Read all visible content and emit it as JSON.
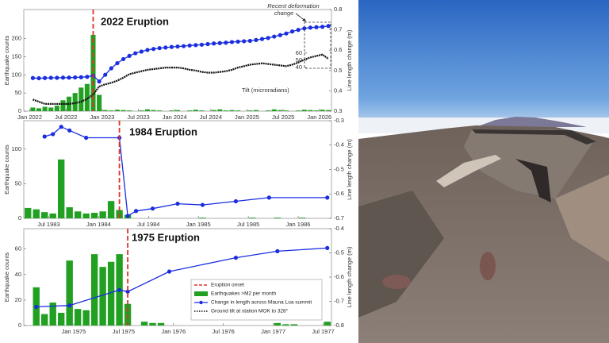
{
  "chart_data": [
    {
      "type": "combo",
      "title": "2022 Eruption",
      "ylabel": "Earthquake counts",
      "y2label": "Line length change (m)",
      "annotation": [
        "Recent deformation",
        "change"
      ],
      "tilt_label": "Tilt (microradians)",
      "eruption_label": "Eruption onset",
      "eruption": "2022-11",
      "xlim": [
        "2021-12",
        "2026-03"
      ],
      "xticks": [
        {
          "value": "2022-01",
          "label": "Jan 2022"
        },
        {
          "value": "2022-07",
          "label": "Jul 2022"
        },
        {
          "value": "2023-01",
          "label": "Jan 2023"
        },
        {
          "value": "2023-07",
          "label": "Jul 2023"
        },
        {
          "value": "2024-01",
          "label": "Jan 2024"
        },
        {
          "value": "2024-07",
          "label": "Jul 2024"
        },
        {
          "value": "2025-01",
          "label": "Jan 2025"
        },
        {
          "value": "2025-07",
          "label": "Jul 2025"
        },
        {
          "value": "2026-01",
          "label": "Jan 2026"
        }
      ],
      "ylim": [
        0,
        280
      ],
      "yticks": [
        0,
        50,
        100,
        150,
        200
      ],
      "y2lim": [
        0.3,
        0.8
      ],
      "y2ticks": [
        0.3,
        0.4,
        0.5,
        0.6,
        0.7,
        0.8
      ],
      "tilt_lim": [
        -20,
        120
      ],
      "tilt_ticks": [
        40,
        50,
        60
      ],
      "x": [
        "2022-01",
        "2022-02",
        "2022-03",
        "2022-04",
        "2022-05",
        "2022-06",
        "2022-07",
        "2022-08",
        "2022-09",
        "2022-10",
        "2022-11",
        "2022-12",
        "2023-01",
        "2023-02",
        "2023-03",
        "2023-04",
        "2023-05",
        "2023-06",
        "2023-07",
        "2023-08",
        "2023-09",
        "2023-10",
        "2023-11",
        "2023-12",
        "2024-01",
        "2024-02",
        "2024-03",
        "2024-04",
        "2024-05",
        "2024-06",
        "2024-07",
        "2024-08",
        "2024-09",
        "2024-10",
        "2024-11",
        "2024-12",
        "2025-01",
        "2025-02",
        "2025-03",
        "2025-04",
        "2025-05",
        "2025-06",
        "2025-07",
        "2025-08",
        "2025-09",
        "2025-10",
        "2025-11",
        "2025-12",
        "2026-01",
        "2026-02"
      ],
      "series": [
        {
          "name": "Earthquakes >M2 per month",
          "kind": "bar",
          "axis": "y",
          "color": "#22a022",
          "values": [
            10,
            8,
            12,
            10,
            15,
            30,
            40,
            50,
            65,
            75,
            210,
            45,
            3,
            2,
            4,
            3,
            2,
            0,
            2,
            5,
            3,
            2,
            0,
            2,
            3,
            0,
            2,
            4,
            2,
            0,
            3,
            5,
            2,
            3,
            2,
            0,
            2,
            3,
            0,
            2,
            5,
            3,
            2,
            0,
            2,
            4,
            3,
            2,
            4,
            3
          ]
        },
        {
          "name": "Ground tilt at station MOK to 328°",
          "kind": "line",
          "axis": "tilt",
          "color": "#111111",
          "values": [
            -4,
            -7,
            -10,
            -10,
            -10,
            -10,
            -10,
            -9,
            -7,
            -3,
            3,
            14,
            17,
            19,
            22,
            26,
            31,
            33,
            35,
            37,
            38,
            39,
            40,
            40,
            40,
            39,
            37,
            36,
            34,
            33,
            33,
            34,
            35,
            37,
            40,
            42,
            44,
            45,
            46,
            45,
            44,
            43,
            42,
            44,
            47,
            51,
            54,
            56,
            58,
            52
          ]
        },
        {
          "name": "Change in length across Mauna Loa summit",
          "kind": "line",
          "axis": "y2",
          "color": "#1a2ee0",
          "markers": true,
          "values": [
            0.463,
            0.462,
            0.463,
            0.464,
            0.464,
            0.465,
            0.465,
            0.466,
            0.467,
            0.469,
            0.475,
            0.446,
            0.479,
            0.511,
            0.536,
            0.556,
            0.572,
            0.585,
            0.593,
            0.601,
            0.606,
            0.61,
            0.613,
            0.616,
            0.618,
            0.62,
            0.623,
            0.625,
            0.627,
            0.63,
            0.633,
            0.635,
            0.637,
            0.64,
            0.642,
            0.644,
            0.646,
            0.65,
            0.655,
            0.66,
            0.667,
            0.674,
            0.682,
            0.692,
            0.7,
            0.707,
            0.711,
            0.713,
            0.715,
            0.719
          ]
        }
      ]
    },
    {
      "type": "combo",
      "title": "1984 Eruption",
      "ylabel": "Earthquake counts",
      "y2label": "Line length change (m)",
      "eruption": "1984-03",
      "xlim": [
        "1983-04",
        "1986-05"
      ],
      "xticks": [
        {
          "value": "1983-07",
          "label": "Jul 1983"
        },
        {
          "value": "1984-01",
          "label": "Jan 1984"
        },
        {
          "value": "1984-07",
          "label": "Jul 1984"
        },
        {
          "value": "1985-01",
          "label": "Jan 1985"
        },
        {
          "value": "1985-07",
          "label": "Jul 1985"
        },
        {
          "value": "1986-01",
          "label": "Jan 1986"
        }
      ],
      "ylim": [
        0,
        141
      ],
      "yticks": [
        0,
        50,
        100
      ],
      "y2lim": [
        -0.7,
        -0.3
      ],
      "y2ticks": [
        -0.7,
        -0.6,
        -0.5,
        -0.4,
        -0.3
      ],
      "series": [
        {
          "kind": "bar",
          "axis": "y",
          "color": "#22a022",
          "x": [
            "1983-04",
            "1983-05",
            "1983-06",
            "1983-07",
            "1983-08",
            "1983-09",
            "1983-10",
            "1983-11",
            "1983-12",
            "1984-01",
            "1984-02",
            "1984-03",
            "1984-04",
            "1985-01",
            "1985-07",
            "1985-10",
            "1986-01"
          ],
          "values": [
            15,
            13,
            9,
            7,
            85,
            16,
            10,
            7,
            8,
            10,
            25,
            12,
            5,
            1,
            1,
            1,
            1
          ]
        },
        {
          "kind": "line",
          "axis": "y2",
          "color": "#1a2ee0",
          "markers": true,
          "x": [
            "1983-06",
            "1983-07",
            "1983-08",
            "1983-09",
            "1983-11",
            "1984-03",
            "1984-04",
            "1984-05",
            "1984-07",
            "1984-10",
            "1985-01",
            "1985-05",
            "1985-09",
            "1986-04"
          ],
          "values": [
            -0.365,
            -0.355,
            -0.325,
            -0.34,
            -0.37,
            -0.37,
            -0.69,
            -0.67,
            -0.66,
            -0.64,
            -0.645,
            -0.63,
            -0.615,
            -0.615
          ]
        }
      ]
    },
    {
      "type": "combo",
      "title": "1975 Eruption",
      "ylabel": "Earthquake counts",
      "y2label": "Line length change (m)",
      "eruption": "1975-07",
      "xlim": [
        "1974-07",
        "1977-08"
      ],
      "xticks": [
        {
          "value": "1975-01",
          "label": "Jan 1975"
        },
        {
          "value": "1975-07",
          "label": "Jul 1975"
        },
        {
          "value": "1976-01",
          "label": "Jan 1976"
        },
        {
          "value": "1976-07",
          "label": "Jul 1976"
        },
        {
          "value": "1977-01",
          "label": "Jan 1977"
        },
        {
          "value": "1977-07",
          "label": "Jul 1977"
        }
      ],
      "ylim": [
        0,
        76
      ],
      "yticks": [
        0,
        20,
        40,
        60
      ],
      "y2lim": [
        -0.8,
        -0.4
      ],
      "y2ticks": [
        -0.8,
        -0.7,
        -0.6,
        -0.5,
        -0.4
      ],
      "series": [
        {
          "kind": "bar",
          "axis": "y",
          "color": "#22a022",
          "x": [
            "1974-08",
            "1974-09",
            "1974-10",
            "1974-11",
            "1974-12",
            "1975-01",
            "1975-02",
            "1975-03",
            "1975-04",
            "1975-05",
            "1975-06",
            "1975-07",
            "1975-09",
            "1975-10",
            "1975-11",
            "1977-01",
            "1977-02",
            "1977-03",
            "1977-07"
          ],
          "values": [
            30,
            9,
            18,
            10,
            51,
            13,
            12,
            56,
            46,
            50,
            56,
            17,
            3,
            2,
            2,
            2,
            1,
            1,
            3
          ]
        },
        {
          "kind": "line",
          "axis": "y2",
          "color": "#1a2ee0",
          "markers": true,
          "x": [
            "1974-08",
            "1974-12",
            "1975-06",
            "1975-07",
            "1975-12",
            "1976-08",
            "1977-01",
            "1977-07"
          ],
          "values": [
            -0.723,
            -0.717,
            -0.653,
            -0.66,
            -0.577,
            -0.52,
            -0.493,
            -0.48
          ]
        }
      ]
    }
  ]
}
